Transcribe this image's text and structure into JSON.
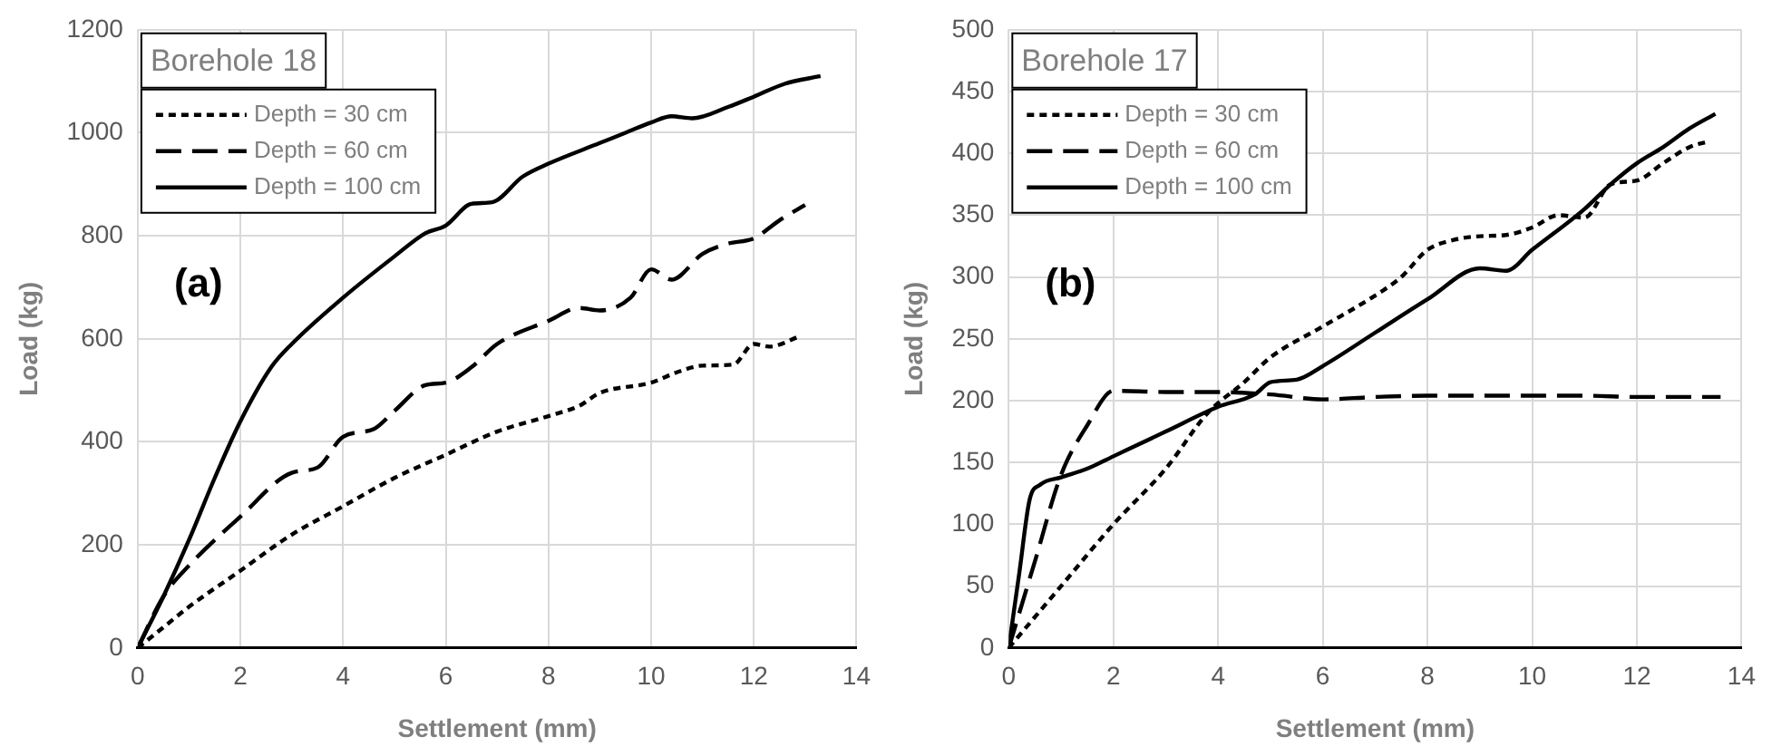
{
  "chart_data": [
    {
      "type": "line",
      "title": "Borehole 18",
      "xlabel": "Settlement (mm)",
      "ylabel": "Load (kg)",
      "annotations": [
        "(a)"
      ],
      "xlim": [
        0,
        14
      ],
      "xticks": [
        0,
        2,
        4,
        6,
        8,
        10,
        12,
        14
      ],
      "ylim": [
        0,
        1200
      ],
      "yticks": [
        0,
        200,
        400,
        600,
        800,
        1000,
        1200
      ],
      "grid": true,
      "legend": "top left",
      "marker": "none",
      "series": [
        {
          "name": "Depth = 30 cm",
          "color": "#000000",
          "line_style": "dotted",
          "x": [
            0,
            0.5,
            1,
            2,
            3,
            4,
            5,
            6,
            7,
            8,
            8.6,
            9,
            10,
            10.5,
            11,
            11.6,
            12,
            12.3,
            12.9
          ],
          "values": [
            0,
            40,
            80,
            150,
            220,
            275,
            330,
            375,
            420,
            450,
            470,
            495,
            515,
            535,
            548,
            550,
            590,
            585,
            605
          ]
        },
        {
          "name": "Depth = 60 cm",
          "color": "#000000",
          "line_style": "dashed",
          "x": [
            0,
            0.5,
            1,
            2,
            3,
            3.5,
            4,
            4.6,
            5,
            5.6,
            6,
            6.5,
            7,
            8,
            8.6,
            9,
            9.6,
            10,
            10.4,
            11,
            11.5,
            12,
            12.5,
            13
          ],
          "values": [
            0,
            100,
            160,
            255,
            340,
            350,
            410,
            425,
            460,
            510,
            515,
            545,
            590,
            635,
            660,
            655,
            680,
            735,
            715,
            765,
            785,
            795,
            830,
            860
          ]
        },
        {
          "name": "Depth = 100 cm",
          "color": "#000000",
          "line_style": "solid",
          "x": [
            0,
            0.5,
            1,
            1.5,
            2,
            2.6,
            3,
            4,
            5,
            5.6,
            6,
            6.5,
            6.9,
            7.5,
            8,
            9,
            9.5,
            10,
            10.4,
            10.8,
            11.5,
            12,
            12.6,
            13.3
          ],
          "values": [
            0,
            100,
            210,
            330,
            440,
            545,
            590,
            680,
            760,
            805,
            820,
            862,
            865,
            915,
            940,
            980,
            1000,
            1020,
            1032,
            1028,
            1050,
            1070,
            1095,
            1110
          ]
        }
      ]
    },
    {
      "type": "line",
      "title": "Borehole 17",
      "xlabel": "Settlement (mm)",
      "ylabel": "Load (kg)",
      "annotations": [
        "(b)"
      ],
      "xlim": [
        0,
        14
      ],
      "xticks": [
        0,
        2,
        4,
        6,
        8,
        10,
        12,
        14
      ],
      "ylim": [
        0,
        500
      ],
      "yticks": [
        0,
        50,
        100,
        150,
        200,
        250,
        300,
        350,
        400,
        450,
        500
      ],
      "grid": true,
      "legend": "top left",
      "marker": "none",
      "series": [
        {
          "name": "Depth = 30 cm",
          "color": "#000000",
          "line_style": "dotted",
          "x": [
            0,
            1,
            2,
            3,
            3.8,
            4.5,
            5,
            6,
            7,
            7.5,
            8,
            8.5,
            9,
            9.5,
            10,
            10.5,
            11,
            11.5,
            12,
            12.5,
            13,
            13.4
          ],
          "values": [
            0,
            50,
            100,
            145,
            190,
            215,
            235,
            260,
            285,
            300,
            322,
            330,
            333,
            334,
            340,
            350,
            348,
            375,
            378,
            392,
            405,
            410
          ]
        },
        {
          "name": "Depth = 60 cm",
          "color": "#000000",
          "line_style": "dashed",
          "x": [
            0,
            0.5,
            1,
            1.5,
            2,
            3,
            4,
            5,
            6,
            7,
            8,
            9,
            10,
            11,
            12,
            13.6
          ],
          "values": [
            0,
            70,
            140,
            180,
            208,
            207,
            207,
            205,
            201,
            203,
            204,
            204,
            204,
            204,
            203,
            203
          ]
        },
        {
          "name": "Depth = 100 cm",
          "color": "#000000",
          "line_style": "solid",
          "x": [
            0,
            0.2,
            0.4,
            0.6,
            1,
            1.5,
            2,
            3,
            4,
            4.7,
            5,
            5.5,
            6,
            7,
            8,
            9,
            9.5,
            10,
            11,
            11.5,
            12,
            12.5,
            13,
            13.5
          ],
          "values": [
            0,
            60,
            120,
            132,
            138,
            145,
            155,
            175,
            195,
            205,
            215,
            217,
            228,
            255,
            282,
            307,
            305,
            322,
            355,
            375,
            392,
            405,
            420,
            432
          ]
        }
      ]
    }
  ]
}
